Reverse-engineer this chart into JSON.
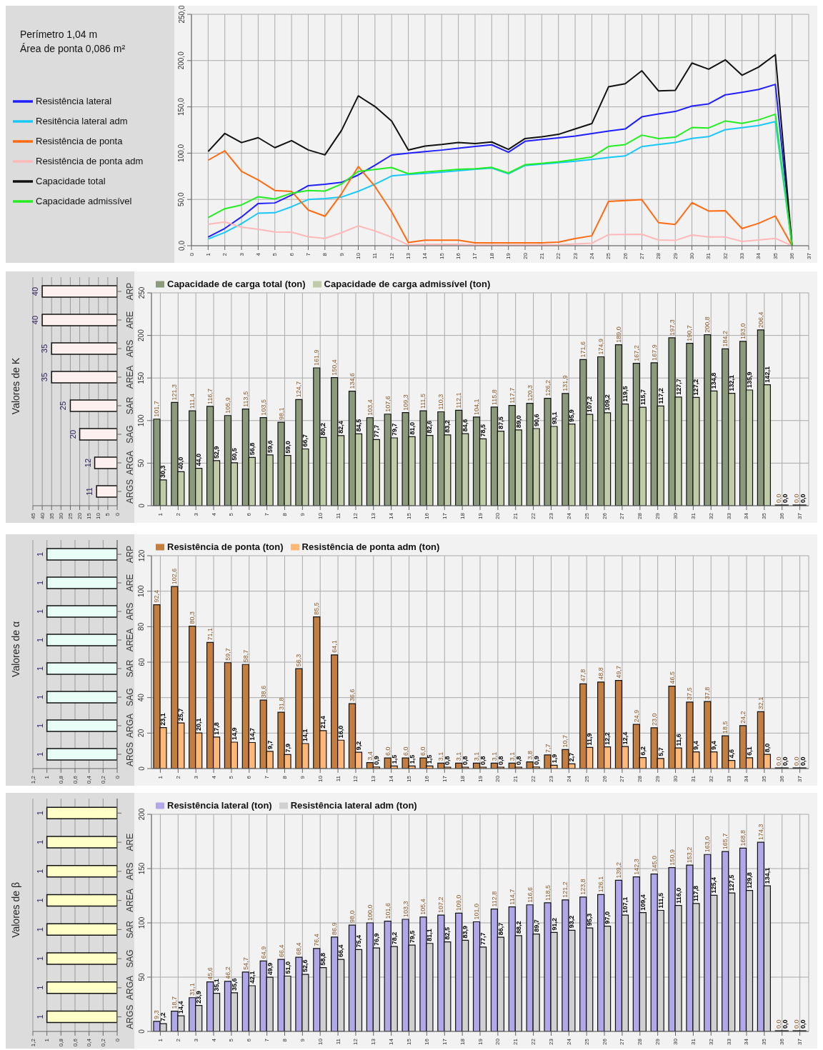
{
  "chart_data": [
    {
      "type": "line",
      "annotations": [
        "Perímetro 1,04 m",
        "Área de ponta 0,086 m²"
      ],
      "x": [
        1,
        2,
        3,
        4,
        5,
        6,
        7,
        8,
        9,
        10,
        11,
        12,
        13,
        14,
        15,
        16,
        17,
        18,
        19,
        20,
        21,
        22,
        23,
        24,
        25,
        26,
        27,
        28,
        29,
        30,
        31,
        32,
        33,
        34,
        35,
        36
      ],
      "xlim": [
        0,
        37
      ],
      "xticks": [
        0,
        1,
        2,
        3,
        4,
        5,
        6,
        7,
        8,
        9,
        10,
        11,
        12,
        13,
        14,
        15,
        16,
        17,
        18,
        19,
        20,
        21,
        22,
        23,
        24,
        25,
        26,
        27,
        28,
        29,
        30,
        31,
        32,
        33,
        34,
        35,
        36,
        37
      ],
      "ylim": [
        0,
        250
      ],
      "yticks": [
        {
          "value": 0,
          "label": "0,0"
        },
        {
          "value": 50,
          "label": "50,0"
        },
        {
          "value": 100,
          "label": "100,0"
        },
        {
          "value": 150,
          "label": "150,0"
        },
        {
          "value": 200,
          "label": "200,0"
        },
        {
          "value": 250,
          "label": "250,0"
        }
      ],
      "grid": true,
      "legend": "left",
      "series": [
        {
          "name": "Resistência lateral",
          "color": "#1f1fff",
          "values": [
            9.3,
            18.7,
            31.1,
            45.6,
            46.2,
            54.7,
            64.9,
            66.4,
            68.4,
            76.4,
            86.9,
            98.0,
            100.0,
            101.6,
            103.3,
            105.4,
            107.2,
            109.0,
            101.0,
            112.8,
            114.7,
            116.6,
            118.5,
            121.2,
            123.8,
            126.1,
            139.2,
            142.3,
            145.0,
            150.9,
            153.2,
            163.0,
            165.7,
            168.8,
            174.3,
            0
          ]
        },
        {
          "name": "Resitência lateral adm",
          "color": "#18c8f8",
          "values": [
            7.2,
            14.4,
            23.9,
            35.1,
            35.6,
            42.1,
            49.9,
            51.0,
            52.6,
            58.8,
            66.4,
            75.4,
            76.9,
            78.2,
            79.5,
            81.1,
            82.5,
            83.9,
            77.7,
            86.7,
            88.2,
            89.7,
            91.2,
            93.2,
            95.3,
            97.0,
            107.1,
            109.4,
            111.5,
            116.0,
            117.8,
            125.4,
            127.5,
            129.8,
            134.1,
            0
          ]
        },
        {
          "name": "Resistência de ponta",
          "color": "#ff6a10",
          "values": [
            92.4,
            102.6,
            80.3,
            71.1,
            59.7,
            58.7,
            38.6,
            31.8,
            56.3,
            85.5,
            64.1,
            36.6,
            3.4,
            6.0,
            6.0,
            6.0,
            3.1,
            3.1,
            3.1,
            3.1,
            3.1,
            3.8,
            7.7,
            10.7,
            47.8,
            48.8,
            49.7,
            24.9,
            23.0,
            46.5,
            37.5,
            37.8,
            18.5,
            24.2,
            32.1,
            0
          ]
        },
        {
          "name": "Resistência de ponta adm",
          "color": "#ffb8b8",
          "values": [
            23.1,
            25.7,
            20.1,
            17.8,
            14.9,
            14.7,
            9.7,
            7.9,
            14.1,
            21.4,
            16.0,
            9.2,
            0.9,
            1.5,
            1.5,
            1.5,
            0.8,
            0.8,
            0.8,
            0.8,
            0.8,
            0.9,
            1.9,
            2.7,
            11.9,
            12.2,
            12.4,
            6.2,
            5.7,
            11.6,
            9.4,
            9.4,
            4.6,
            6.1,
            8.0,
            0
          ]
        },
        {
          "name": "Capacidade total",
          "color": "#111111",
          "values": [
            101.7,
            121.3,
            111.4,
            116.7,
            105.9,
            113.5,
            103.5,
            98.1,
            124.7,
            161.9,
            150.4,
            134.6,
            103.4,
            107.6,
            109.3,
            111.5,
            110.3,
            112.1,
            104.1,
            115.8,
            117.7,
            120.3,
            126.2,
            131.9,
            171.6,
            174.9,
            189.0,
            167.2,
            167.9,
            197.3,
            190.7,
            200.8,
            184.2,
            193.0,
            206.4,
            0
          ]
        },
        {
          "name": "Capacidade admissível",
          "color": "#22ee22",
          "values": [
            30.3,
            40.0,
            44.0,
            52.9,
            50.5,
            56.8,
            59.6,
            59.0,
            66.7,
            80.2,
            82.4,
            84.5,
            77.7,
            79.7,
            81.0,
            82.6,
            83.2,
            84.6,
            78.5,
            87.5,
            89.0,
            90.6,
            93.1,
            95.9,
            107.2,
            109.2,
            119.5,
            115.7,
            117.2,
            127.7,
            127.2,
            134.8,
            132.1,
            135.9,
            142.1,
            0
          ]
        }
      ]
    },
    {
      "type": "bar",
      "orientation": "horizontal",
      "title": "Valores de K",
      "categories": [
        "ARP",
        "ARE",
        "ARS",
        "AREA",
        "SAR",
        "SAG",
        "ARGA",
        "ARGS"
      ],
      "values": [
        40,
        40,
        35,
        35,
        25,
        20,
        12,
        11
      ],
      "color": "#fff0f0",
      "xlim": [
        45,
        0
      ],
      "xticks": [
        0,
        5,
        10,
        15,
        20,
        25,
        30,
        35,
        40,
        45
      ],
      "grid": "x",
      "data_labels": true
    },
    {
      "type": "bar",
      "categories": [
        "1",
        "2",
        "3",
        "4",
        "5",
        "6",
        "7",
        "8",
        "9",
        "10",
        "11",
        "12",
        "13",
        "14",
        "15",
        "16",
        "17",
        "18",
        "19",
        "20",
        "21",
        "22",
        "23",
        "24",
        "25",
        "26",
        "27",
        "28",
        "29",
        "30",
        "31",
        "32",
        "33",
        "34",
        "35",
        "36",
        "37"
      ],
      "ylim": [
        0,
        250
      ],
      "yticks": [
        0,
        50,
        100,
        150,
        200,
        250
      ],
      "grid": true,
      "legend": "top left",
      "series": [
        {
          "name": "Capacidade de carga total (ton)",
          "color": "#8a9a7a",
          "values": [
            101.7,
            121.3,
            111.4,
            116.7,
            105.9,
            113.5,
            103.5,
            98.1,
            124.7,
            161.9,
            150.4,
            134.6,
            103.4,
            107.6,
            109.3,
            111.5,
            110.3,
            112.1,
            104.1,
            115.8,
            117.7,
            120.3,
            126.2,
            131.9,
            171.6,
            174.9,
            189.0,
            167.2,
            167.9,
            197.3,
            190.7,
            200.8,
            184.2,
            193.0,
            206.4,
            0,
            0
          ],
          "value_labels": [
            "101,7",
            "121,3",
            "111,4",
            "116,7",
            "105,9",
            "113,5",
            "103,5",
            "98,1",
            "124,7",
            "161,9",
            "150,4",
            "134,6",
            "103,4",
            "107,6",
            "109,3",
            "111,5",
            "110,3",
            "112,1",
            "104,1",
            "115,8",
            "117,7",
            "120,3",
            "126,2",
            "131,9",
            "171,6",
            "174,9",
            "189,0",
            "167,2",
            "167,9",
            "197,3",
            "190,7",
            "200,8",
            "184,2",
            "193,0",
            "206,4",
            "0,0",
            "0,0"
          ]
        },
        {
          "name": "Capacidade de carga admissível (ton)",
          "color": "#c0cca8",
          "values": [
            30.3,
            40.0,
            44.0,
            52.9,
            50.5,
            56.8,
            59.6,
            59.0,
            66.7,
            80.2,
            82.4,
            84.5,
            77.7,
            79.7,
            81.0,
            82.6,
            83.2,
            84.6,
            78.5,
            87.5,
            89.0,
            90.6,
            93.1,
            95.9,
            107.2,
            109.2,
            119.5,
            115.7,
            117.2,
            127.7,
            127.2,
            134.8,
            132.1,
            135.9,
            142.1,
            0,
            0
          ],
          "value_labels": [
            "30,3",
            "40,0",
            "44,0",
            "52,9",
            "50,5",
            "56,8",
            "59,6",
            "59,0",
            "66,7",
            "80,2",
            "82,4",
            "84,5",
            "77,7",
            "79,7",
            "81,0",
            "82,6",
            "83,2",
            "84,6",
            "78,5",
            "87,5",
            "89,0",
            "90,6",
            "93,1",
            "95,9",
            "107,2",
            "109,2",
            "119,5",
            "115,7",
            "117,2",
            "127,7",
            "127,2",
            "134,8",
            "132,1",
            "135,9",
            "142,1",
            "0,0",
            "0,0"
          ]
        }
      ]
    },
    {
      "type": "bar",
      "orientation": "horizontal",
      "title": "Valores de α",
      "categories": [
        "ARP",
        "ARE",
        "ARS",
        "AREA",
        "SAR",
        "SAG",
        "ARGA",
        "ARGS"
      ],
      "values": [
        1,
        1,
        1,
        1,
        1,
        1,
        1,
        1
      ],
      "color": "#e8fff8",
      "xlim": [
        1.2,
        0
      ],
      "xticks": [
        0,
        {
          "value": 0.2,
          "label": "0,2"
        },
        {
          "value": 0.4,
          "label": "0,4"
        },
        {
          "value": 0.6,
          "label": "0,6"
        },
        {
          "value": 0.8,
          "label": "0,8"
        },
        1,
        {
          "value": 1.2,
          "label": "1,2"
        }
      ],
      "grid": "x",
      "data_labels": true
    },
    {
      "type": "bar",
      "categories": [
        "1",
        "2",
        "3",
        "4",
        "5",
        "6",
        "7",
        "8",
        "9",
        "10",
        "11",
        "12",
        "13",
        "14",
        "15",
        "16",
        "17",
        "18",
        "19",
        "20",
        "21",
        "22",
        "23",
        "24",
        "25",
        "26",
        "27",
        "28",
        "29",
        "30",
        "31",
        "32",
        "33",
        "34",
        "35",
        "36",
        "37"
      ],
      "ylim": [
        0,
        120
      ],
      "yticks": [
        0,
        20,
        40,
        60,
        80,
        100,
        120
      ],
      "grid": true,
      "legend": "top left",
      "series": [
        {
          "name": "Resistência de ponta (ton)",
          "color": "#c47f40",
          "values": [
            92.4,
            102.6,
            80.3,
            71.1,
            59.7,
            58.7,
            38.6,
            31.8,
            56.3,
            85.5,
            64.1,
            36.6,
            3.4,
            6.0,
            6.0,
            6.0,
            3.1,
            3.1,
            3.1,
            3.1,
            3.1,
            3.8,
            7.7,
            10.7,
            47.8,
            48.8,
            49.7,
            24.9,
            23.0,
            46.5,
            37.5,
            37.8,
            18.5,
            24.2,
            32.1,
            0,
            0
          ],
          "value_labels": [
            "92,4",
            "102,6",
            "80,3",
            "71,1",
            "59,7",
            "58,7",
            "38,6",
            "31,8",
            "56,3",
            "85,5",
            "64,1",
            "36,6",
            "3,4",
            "6,0",
            "6,0",
            "6,0",
            "3,1",
            "3,1",
            "3,1",
            "3,1",
            "3,1",
            "3,8",
            "7,7",
            "10,7",
            "47,8",
            "48,8",
            "49,7",
            "24,9",
            "23,0",
            "46,5",
            "37,5",
            "37,8",
            "18,5",
            "24,2",
            "32,1",
            "0,0",
            "0,0"
          ]
        },
        {
          "name": "Resistência de ponta adm (ton)",
          "color": "#ffb878",
          "values": [
            23.1,
            25.7,
            20.1,
            17.8,
            14.9,
            14.7,
            9.7,
            7.9,
            14.1,
            21.4,
            16.0,
            9.2,
            0.9,
            1.5,
            1.5,
            1.5,
            0.8,
            0.8,
            0.8,
            0.8,
            0.8,
            0.9,
            1.9,
            2.7,
            11.9,
            12.2,
            12.4,
            6.2,
            5.7,
            11.6,
            9.4,
            9.4,
            4.6,
            6.1,
            8.0,
            0,
            0
          ],
          "value_labels": [
            "23,1",
            "25,7",
            "20,1",
            "17,8",
            "14,9",
            "14,7",
            "9,7",
            "7,9",
            "14,1",
            "21,4",
            "16,0",
            "9,2",
            "0,9",
            "1,5",
            "1,5",
            "1,5",
            "0,8",
            "0,8",
            "0,8",
            "0,8",
            "0,8",
            "0,9",
            "1,9",
            "2,7",
            "11,9",
            "12,2",
            "12,4",
            "6,2",
            "5,7",
            "11,6",
            "9,4",
            "9,4",
            "4,6",
            "6,1",
            "8,0",
            "0,0",
            "0,0"
          ]
        }
      ]
    },
    {
      "type": "bar",
      "orientation": "horizontal",
      "title": "Valores de β",
      "categories": [
        null,
        "ARE",
        "ARS",
        "AREA",
        "SAR",
        "SAG",
        "ARGA",
        "ARGS"
      ],
      "values": [
        1,
        1,
        1,
        1,
        1,
        1,
        1,
        1
      ],
      "color": "#ffffc8",
      "xlim": [
        1.2,
        0
      ],
      "xticks": [
        0,
        {
          "value": 0.2,
          "label": "0,2"
        },
        {
          "value": 0.4,
          "label": "0,4"
        },
        {
          "value": 0.6,
          "label": "0,6"
        },
        {
          "value": 0.8,
          "label": "0,8"
        },
        1,
        {
          "value": 1.2,
          "label": "1,2"
        }
      ],
      "grid": "x",
      "data_labels": true
    },
    {
      "type": "bar",
      "categories": [
        "1",
        "2",
        "3",
        "4",
        "5",
        "6",
        "7",
        "8",
        "9",
        "10",
        "11",
        "12",
        "13",
        "14",
        "15",
        "16",
        "17",
        "18",
        "19",
        "20",
        "21",
        "22",
        "23",
        "24",
        "25",
        "26",
        "27",
        "28",
        "29",
        "30",
        "31",
        "32",
        "33",
        "34",
        "35",
        "36",
        "37"
      ],
      "ylim": [
        0,
        200
      ],
      "yticks": [
        0,
        50,
        100,
        150,
        200
      ],
      "grid": true,
      "legend": "top left",
      "series": [
        {
          "name": "Resistência lateral (ton)",
          "color": "#b0a8e8",
          "values": [
            9.3,
            18.7,
            31.1,
            45.6,
            46.2,
            54.7,
            64.9,
            66.4,
            68.4,
            76.4,
            86.9,
            98.0,
            100.0,
            101.6,
            103.3,
            105.4,
            107.2,
            109.0,
            101.0,
            112.8,
            114.7,
            116.6,
            118.5,
            121.2,
            123.8,
            126.1,
            139.2,
            142.3,
            145.0,
            150.9,
            153.2,
            163.0,
            165.7,
            168.8,
            174.3,
            0,
            0
          ],
          "value_labels": [
            "9,3",
            "18,7",
            "31,1",
            "45,6",
            "46,2",
            "54,7",
            "64,9",
            "66,4",
            "68,4",
            "76,4",
            "86,9",
            "98,0",
            "100,0",
            "101,6",
            "103,3",
            "105,4",
            "107,2",
            "109,0",
            "101,0",
            "112,8",
            "114,7",
            "116,6",
            "118,5",
            "121,2",
            "123,8",
            "126,1",
            "139,2",
            "142,3",
            "145,0",
            "150,9",
            "153,2",
            "163,0",
            "165,7",
            "168,8",
            "174,3",
            "0,0",
            "0,0"
          ]
        },
        {
          "name": "Resistência lateral adm (ton)",
          "color": "#d0d0d0",
          "values": [
            7.2,
            14.4,
            23.9,
            35.1,
            35.6,
            42.1,
            49.9,
            51.0,
            52.6,
            58.8,
            66.4,
            75.4,
            76.9,
            78.2,
            79.5,
            81.1,
            82.5,
            83.9,
            77.7,
            86.7,
            88.2,
            89.7,
            91.2,
            93.2,
            95.3,
            97.0,
            107.1,
            109.4,
            111.5,
            116.0,
            117.8,
            125.4,
            127.5,
            129.8,
            134.1,
            0,
            0
          ],
          "value_labels": [
            "7,2",
            "14,4",
            "23,9",
            "35,1",
            "35,6",
            "42,1",
            "49,9",
            "51,0",
            "52,6",
            "58,8",
            "66,4",
            "75,4",
            "76,9",
            "78,2",
            "79,5",
            "81,1",
            "82,5",
            "83,9",
            "77,7",
            "86,7",
            "88,2",
            "89,7",
            "91,2",
            "93,2",
            "95,3",
            "97,0",
            "107,1",
            "109,4",
            "111,5",
            "116,0",
            "117,8",
            "125,4",
            "127,5",
            "129,8",
            "134,1",
            "0,0",
            "0,0"
          ]
        }
      ]
    }
  ]
}
